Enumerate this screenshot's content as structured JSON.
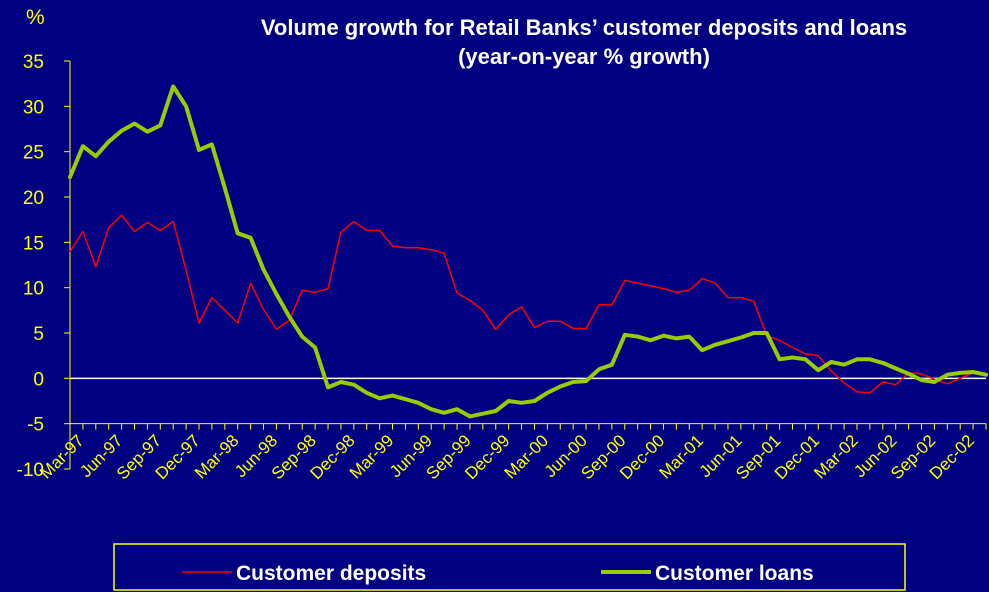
{
  "chart_data": {
    "type": "line",
    "title": "Volume growth for Retail Banks’ customer deposits and loans",
    "subtitle": "(year-on-year % growth)",
    "ylabel": "%",
    "ylim": [
      -10,
      35
    ],
    "yticks": [
      35,
      30,
      25,
      20,
      15,
      10,
      5,
      0,
      -5,
      -10
    ],
    "x_tick_labels": [
      "Mar-97",
      "Jun-97",
      "Sep-97",
      "Dec-97",
      "Mar-98",
      "Jun-98",
      "Sep-98",
      "Dec-98",
      "Mar-99",
      "Jun-99",
      "Sep-99",
      "Dec-99",
      "Mar-00",
      "Jun-00",
      "Sep-00",
      "Dec-00",
      "Mar-01",
      "Jun-01",
      "Sep-01",
      "Dec-01",
      "Mar-02",
      "Jun-02",
      "Sep-02",
      "Dec-02"
    ],
    "x": [
      "Feb-97",
      "Mar-97",
      "Apr-97",
      "May-97",
      "Jun-97",
      "Jul-97",
      "Aug-97",
      "Sep-97",
      "Oct-97",
      "Nov-97",
      "Dec-97",
      "Jan-98",
      "Feb-98",
      "Mar-98",
      "Apr-98",
      "May-98",
      "Jun-98",
      "Jul-98",
      "Aug-98",
      "Sep-98",
      "Oct-98",
      "Nov-98",
      "Dec-98",
      "Jan-99",
      "Feb-99",
      "Mar-99",
      "Apr-99",
      "May-99",
      "Jun-99",
      "Jul-99",
      "Aug-99",
      "Sep-99",
      "Oct-99",
      "Nov-99",
      "Dec-99",
      "Jan-00",
      "Feb-00",
      "Mar-00",
      "Apr-00",
      "May-00",
      "Jun-00",
      "Jul-00",
      "Aug-00",
      "Sep-00",
      "Oct-00",
      "Nov-00",
      "Dec-00",
      "Jan-01",
      "Feb-01",
      "Mar-01",
      "Apr-01",
      "May-01",
      "Jun-01",
      "Jul-01",
      "Aug-01",
      "Sep-01",
      "Oct-01",
      "Nov-01",
      "Dec-01",
      "Jan-02",
      "Feb-02",
      "Mar-02",
      "Apr-02",
      "May-02",
      "Jun-02",
      "Jul-02",
      "Aug-02",
      "Sep-02",
      "Oct-02",
      "Nov-02",
      "Dec-02",
      "Jan-03"
    ],
    "series": [
      {
        "name": "Customer deposits",
        "color": "#ff0000",
        "values": [
          14,
          16.2,
          12.3,
          16.6,
          18,
          16.2,
          17.2,
          16.3,
          17.3,
          11.9,
          6.1,
          8.9,
          7.5,
          6.1,
          10.5,
          7.6,
          5.4,
          6.4,
          9.7,
          9.5,
          9.9,
          16.1,
          17.3,
          16.3,
          16.3,
          14.6,
          14.4,
          14.4,
          14.2,
          13.8,
          9.4,
          8.6,
          7.5,
          5.4,
          7,
          7.9,
          5.6,
          6.3,
          6.3,
          5.5,
          5.5,
          8.1,
          8.1,
          10.8,
          10.5,
          10.2,
          9.9,
          9.5,
          9.7,
          11,
          10.5,
          8.9,
          8.9,
          8.5,
          4.7,
          4.2,
          3.4,
          2.7,
          2.5,
          0.8,
          -0.5,
          -1.5,
          -1.6,
          -0.4,
          -0.7,
          0.6,
          0.5,
          -0.1,
          -0.6,
          0,
          0.6,
          0.4
        ]
      },
      {
        "name": "Customer loans",
        "color": "#99cc00",
        "values": [
          22.2,
          25.6,
          24.5,
          26.1,
          27.3,
          28.1,
          27.2,
          27.9,
          32.2,
          30,
          25.2,
          25.8,
          21,
          16,
          15.5,
          12,
          9.3,
          6.8,
          4.6,
          3.4,
          -1,
          -0.4,
          -0.7,
          -1.6,
          -2.2,
          -1.9,
          -2.3,
          -2.7,
          -3.4,
          -3.8,
          -3.4,
          -4.2,
          -3.9,
          -3.6,
          -2.5,
          -2.7,
          -2.5,
          -1.6,
          -0.9,
          -0.4,
          -0.3,
          1,
          1.5,
          4.8,
          4.6,
          4.2,
          4.7,
          4.4,
          4.6,
          3.1,
          3.7,
          4.1,
          4.5,
          5,
          5,
          2.1,
          2.3,
          2.1,
          0.9,
          1.8,
          1.5,
          2.1,
          2.1,
          1.7,
          1.1,
          0.5,
          -0.2,
          -0.4,
          0.4,
          0.6,
          0.7,
          0.4
        ]
      }
    ],
    "grid": false,
    "legend_position": "bottom"
  }
}
